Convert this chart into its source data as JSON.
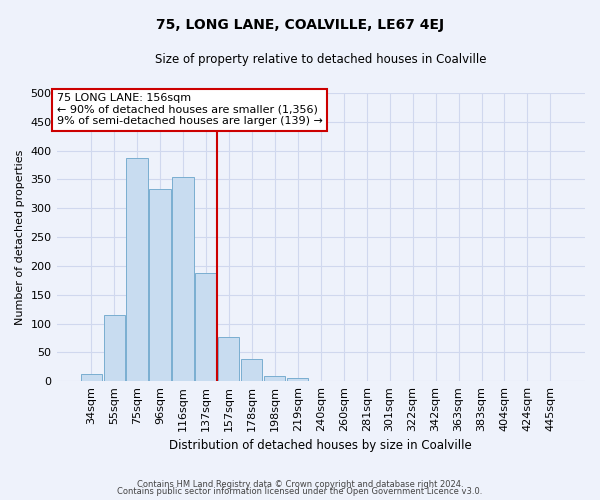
{
  "title": "75, LONG LANE, COALVILLE, LE67 4EJ",
  "subtitle": "Size of property relative to detached houses in Coalville",
  "xlabel": "Distribution of detached houses by size in Coalville",
  "ylabel": "Number of detached properties",
  "bar_labels": [
    "34sqm",
    "55sqm",
    "75sqm",
    "96sqm",
    "116sqm",
    "137sqm",
    "157sqm",
    "178sqm",
    "198sqm",
    "219sqm",
    "240sqm",
    "260sqm",
    "281sqm",
    "301sqm",
    "322sqm",
    "342sqm",
    "363sqm",
    "383sqm",
    "404sqm",
    "424sqm",
    "445sqm"
  ],
  "bar_values": [
    12,
    114,
    387,
    334,
    354,
    188,
    76,
    39,
    9,
    5,
    0,
    0,
    0,
    0,
    0,
    0,
    0,
    0,
    0,
    1,
    1
  ],
  "bar_color": "#c8dcf0",
  "bar_edge_color": "#7aaed0",
  "vline_index": 6,
  "vline_color": "#cc0000",
  "ylim": [
    0,
    500
  ],
  "yticks": [
    0,
    50,
    100,
    150,
    200,
    250,
    300,
    350,
    400,
    450,
    500
  ],
  "annotation_title": "75 LONG LANE: 156sqm",
  "annotation_line1": "← 90% of detached houses are smaller (1,356)",
  "annotation_line2": "9% of semi-detached houses are larger (139) →",
  "annotation_box_color": "#ffffff",
  "annotation_box_edge": "#cc0000",
  "footnote1": "Contains HM Land Registry data © Crown copyright and database right 2024.",
  "footnote2": "Contains public sector information licensed under the Open Government Licence v3.0.",
  "background_color": "#eef2fb",
  "plot_bg_color": "#eef2fb",
  "grid_color": "#d0d8ee"
}
